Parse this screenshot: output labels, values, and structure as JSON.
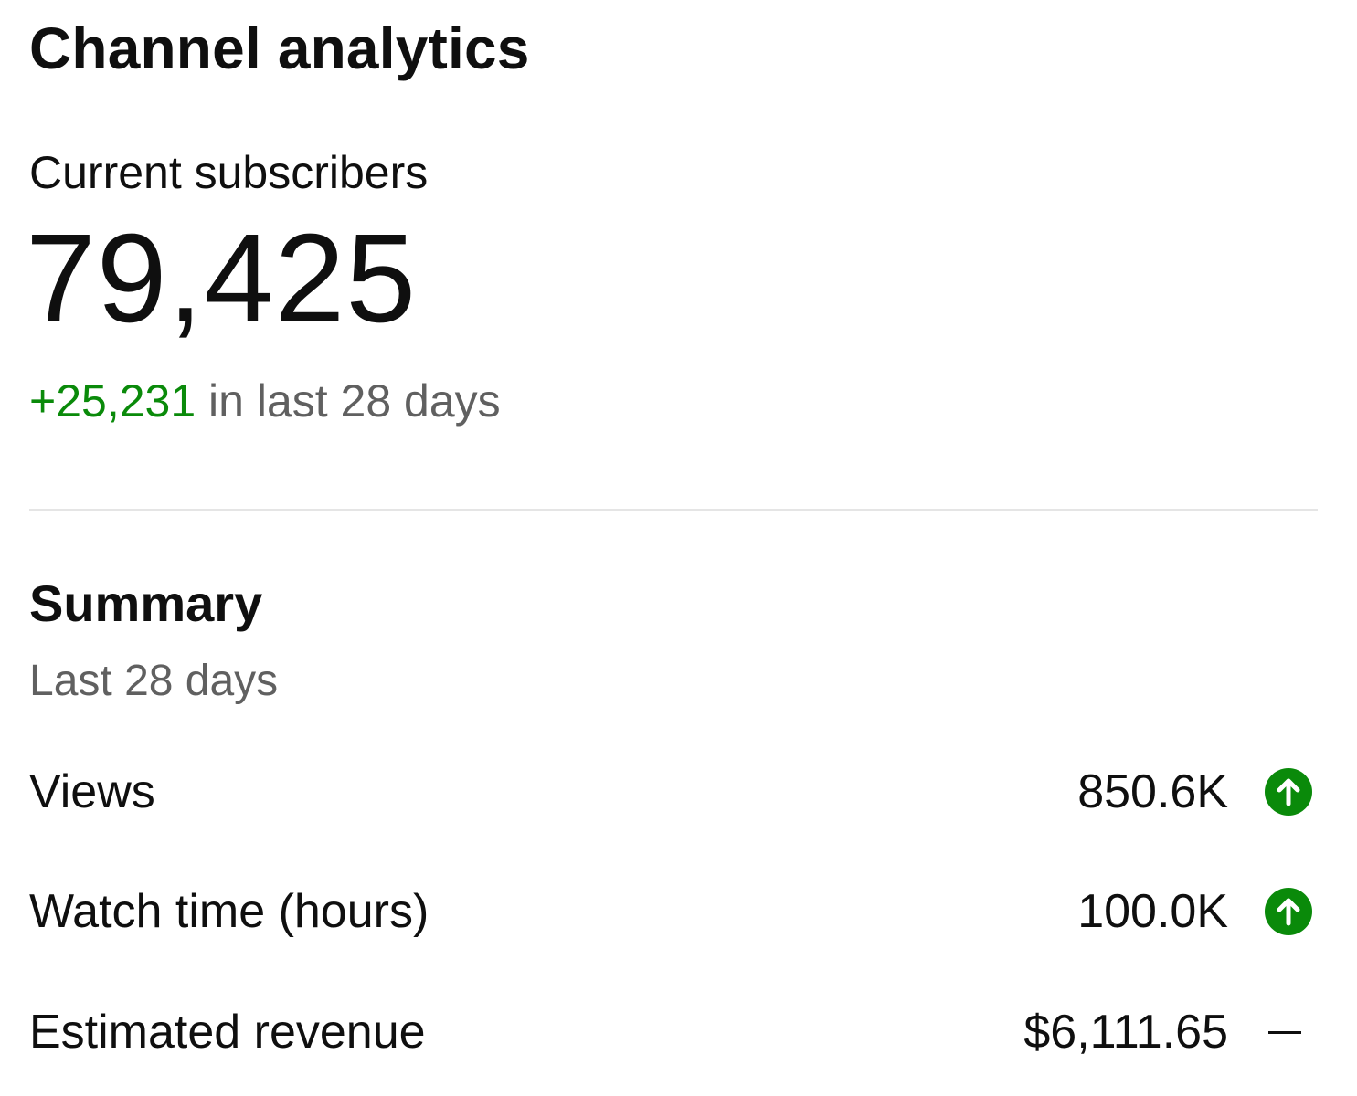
{
  "header": {
    "title": "Channel analytics"
  },
  "subscribers": {
    "label": "Current subscribers",
    "count": "79,425",
    "delta": "+25,231",
    "delta_suffix": " in last 28 days"
  },
  "summary": {
    "title": "Summary",
    "range": "Last 28 days",
    "metrics": [
      {
        "label": "Views",
        "value": "850.6K",
        "trend": "up",
        "trend_icon": "arrow-up-circle-icon"
      },
      {
        "label": "Watch time (hours)",
        "value": "100.0K",
        "trend": "up",
        "trend_icon": "arrow-up-circle-icon"
      },
      {
        "label": "Estimated revenue",
        "value": "$6,111.65",
        "trend": "flat",
        "trend_icon": "dash-icon"
      }
    ]
  },
  "colors": {
    "positive": "#0a8a0a",
    "secondary_text": "#606060",
    "primary_text": "#0f0f0f",
    "divider": "#e5e5e5"
  }
}
